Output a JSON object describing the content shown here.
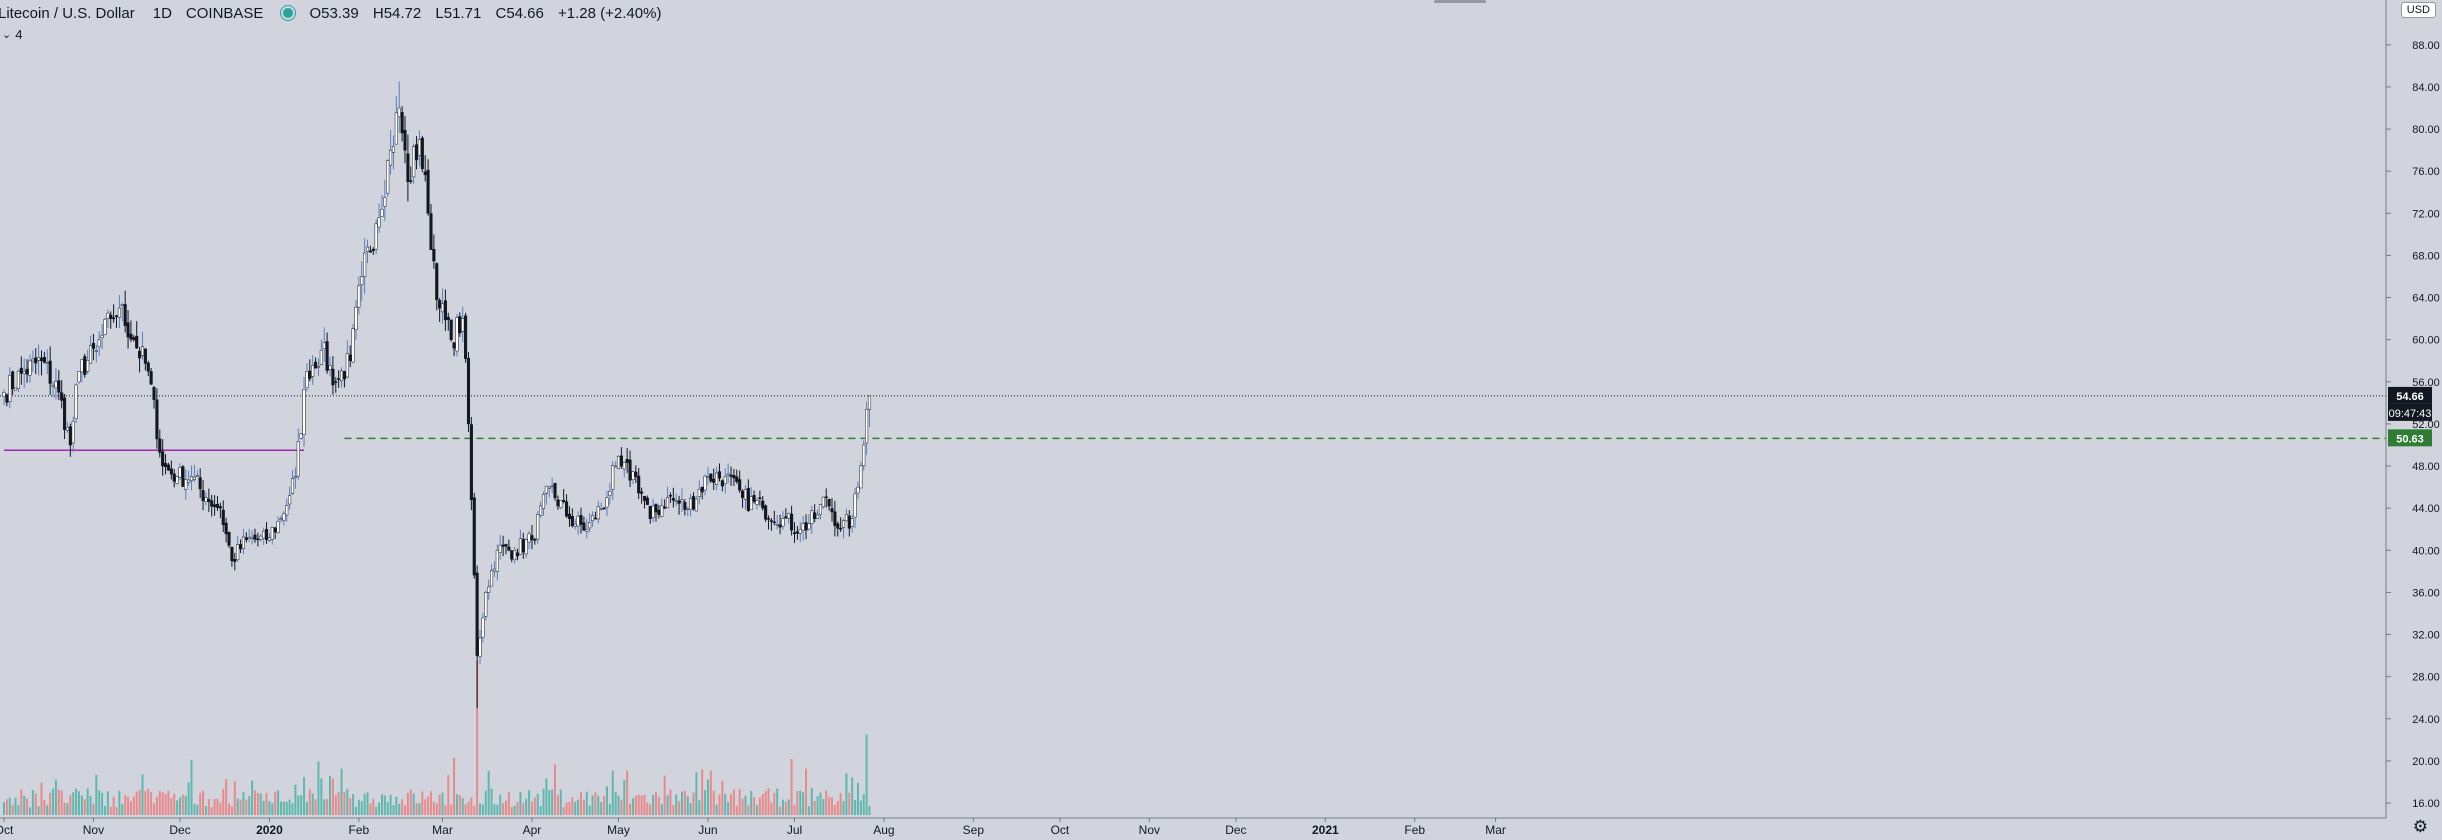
{
  "header": {
    "symbol": "Litecoin / U.S. Dollar",
    "interval": "1D",
    "exchange": "COINBASE",
    "open_label": "O",
    "open": "53.39",
    "high_label": "H",
    "high": "54.72",
    "low_label": "L",
    "low": "51.71",
    "close_label": "C",
    "close": "54.66",
    "change": "+1.28 (+2.40%)"
  },
  "indicator": {
    "label": "4"
  },
  "currency_badge": "USD",
  "price_labels": {
    "last_price": "54.66",
    "countdown": "09:47:43",
    "level": "50.63"
  },
  "colors": {
    "background": "#d1d4dc",
    "up": "#ffffff",
    "down": "#131722",
    "wick_up": "#5b7fc4",
    "volume_up": "#5fb8ad",
    "volume_down": "#e88a8a",
    "support_line": "#2e7d32",
    "purple_line": "#9c27b0",
    "level_badge": "#2e7d32"
  },
  "chart_data": {
    "type": "candlestick",
    "title": "Litecoin / U.S. Dollar",
    "ylim": [
      14,
      90
    ],
    "y_ticks": [
      16,
      20,
      24,
      28,
      32,
      36,
      40,
      44,
      48,
      52,
      56,
      60,
      64,
      68,
      72,
      76,
      80,
      84,
      88
    ],
    "x_labels": [
      "Oct",
      "Nov",
      "Dec",
      "2020",
      "Feb",
      "Mar",
      "Apr",
      "May",
      "Jun",
      "Jul",
      "Aug",
      "Sep",
      "Oct",
      "Nov",
      "Dec",
      "2021",
      "Feb",
      "Mar"
    ],
    "x_label_dates": [
      "2019-10-01",
      "2019-11-01",
      "2019-12-01",
      "2020-01-01",
      "2020-02-01",
      "2020-03-01",
      "2020-04-01",
      "2020-05-01",
      "2020-06-01",
      "2020-07-01",
      "2020-08-01",
      "2020-09-01",
      "2020-10-01",
      "2020-11-01",
      "2020-12-01",
      "2021-01-01",
      "2021-02-01",
      "2021-03-01"
    ],
    "horizontal_lines": [
      {
        "value": 54.66,
        "style": "dotted",
        "label": "54.66"
      },
      {
        "value": 50.63,
        "style": "dashed",
        "from": "2020-01-27",
        "label": "50.63"
      },
      {
        "value": 49.5,
        "style": "solid",
        "from": "2019-10-01",
        "to": "2020-01-13"
      }
    ],
    "price_anchors": [
      [
        "2019-10-01",
        55.0
      ],
      [
        "2019-10-08",
        57.0
      ],
      [
        "2019-10-14",
        58.0
      ],
      [
        "2019-10-20",
        55.0
      ],
      [
        "2019-10-24",
        50.0
      ],
      [
        "2019-10-27",
        57.0
      ],
      [
        "2019-11-02",
        59.0
      ],
      [
        "2019-11-07",
        62.0
      ],
      [
        "2019-11-10",
        63.0
      ],
      [
        "2019-11-15",
        60.0
      ],
      [
        "2019-11-20",
        57.0
      ],
      [
        "2019-11-25",
        48.0
      ],
      [
        "2019-11-30",
        47.0
      ],
      [
        "2019-12-05",
        47.0
      ],
      [
        "2019-12-10",
        45.0
      ],
      [
        "2019-12-15",
        44.0
      ],
      [
        "2019-12-19",
        39.0
      ],
      [
        "2019-12-24",
        41.0
      ],
      [
        "2019-12-31",
        41.0
      ],
      [
        "2020-01-05",
        43.0
      ],
      [
        "2020-01-10",
        47.0
      ],
      [
        "2020-01-14",
        57.0
      ],
      [
        "2020-01-19",
        59.0
      ],
      [
        "2020-01-24",
        56.0
      ],
      [
        "2020-01-29",
        58.0
      ],
      [
        "2020-02-02",
        66.0
      ],
      [
        "2020-02-07",
        71.0
      ],
      [
        "2020-02-12",
        78.0
      ],
      [
        "2020-02-15",
        82.0
      ],
      [
        "2020-02-18",
        75.0
      ],
      [
        "2020-02-22",
        79.0
      ],
      [
        "2020-02-25",
        72.0
      ],
      [
        "2020-02-29",
        63.0
      ],
      [
        "2020-03-04",
        60.0
      ],
      [
        "2020-03-08",
        62.0
      ],
      [
        "2020-03-10",
        52.0
      ],
      [
        "2020-03-13",
        30.0
      ],
      [
        "2020-03-16",
        36.0
      ],
      [
        "2020-03-20",
        40.0
      ],
      [
        "2020-03-26",
        40.0
      ],
      [
        "2020-04-01",
        41.0
      ],
      [
        "2020-04-07",
        46.0
      ],
      [
        "2020-04-14",
        43.0
      ],
      [
        "2020-04-20",
        42.0
      ],
      [
        "2020-04-27",
        45.0
      ],
      [
        "2020-04-30",
        48.0
      ],
      [
        "2020-05-07",
        47.0
      ],
      [
        "2020-05-12",
        43.0
      ],
      [
        "2020-05-18",
        45.0
      ],
      [
        "2020-05-25",
        44.0
      ],
      [
        "2020-06-01",
        47.0
      ],
      [
        "2020-06-07",
        47.0
      ],
      [
        "2020-06-13",
        45.0
      ],
      [
        "2020-06-20",
        44.0
      ],
      [
        "2020-06-27",
        43.0
      ],
      [
        "2020-07-03",
        42.0
      ],
      [
        "2020-07-08",
        43.0
      ],
      [
        "2020-07-12",
        45.0
      ],
      [
        "2020-07-17",
        42.0
      ],
      [
        "2020-07-21",
        43.0
      ],
      [
        "2020-07-23",
        46.0
      ],
      [
        "2020-07-25",
        50.0
      ],
      [
        "2020-07-26",
        53.4
      ],
      [
        "2020-07-27",
        54.66
      ]
    ],
    "notable_candles": [
      {
        "date": "2020-02-15",
        "high": 84.5
      },
      {
        "date": "2020-03-13",
        "low": 25.0
      },
      {
        "date": "2020-07-27",
        "open": 53.39,
        "high": 54.72,
        "low": 51.71,
        "close": 54.66
      }
    ],
    "volume_spikes": [
      {
        "date": "2020-03-13",
        "value": 29.5
      },
      {
        "date": "2020-07-26",
        "value": 22.5
      }
    ]
  }
}
